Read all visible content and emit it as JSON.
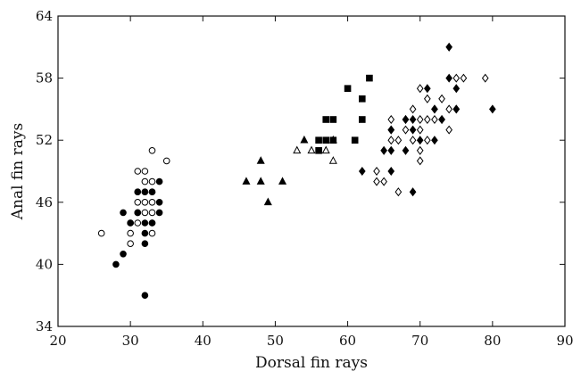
{
  "chart_data": {
    "type": "scatter",
    "xlabel": "Dorsal fin rays",
    "ylabel": "Anal fin rays",
    "xlim": [
      20,
      90
    ],
    "ylim": [
      34,
      64
    ],
    "xticks": [
      20,
      30,
      40,
      50,
      60,
      70,
      80,
      90
    ],
    "yticks": [
      34,
      40,
      46,
      52,
      58,
      64
    ],
    "xtick_labels": [
      "20",
      "30",
      "40",
      "50",
      "60",
      "70",
      "80",
      "90"
    ],
    "ytick_labels": [
      "34",
      "40",
      "46",
      "52",
      "58",
      "64"
    ],
    "grid": false,
    "legend": "none",
    "series": [
      {
        "marker": "open-circle",
        "points": [
          [
            26,
            43
          ],
          [
            30,
            42
          ],
          [
            30,
            43
          ],
          [
            30,
            44
          ],
          [
            31,
            44
          ],
          [
            31,
            45
          ],
          [
            31,
            46
          ],
          [
            31,
            47
          ],
          [
            31,
            49
          ],
          [
            32,
            45
          ],
          [
            32,
            46
          ],
          [
            32,
            47
          ],
          [
            32,
            48
          ],
          [
            32,
            49
          ],
          [
            33,
            43
          ],
          [
            33,
            44
          ],
          [
            33,
            45
          ],
          [
            33,
            46
          ],
          [
            33,
            47
          ],
          [
            33,
            48
          ],
          [
            33,
            51
          ],
          [
            35,
            50
          ]
        ]
      },
      {
        "marker": "filled-circle",
        "points": [
          [
            28,
            40
          ],
          [
            29,
            41
          ],
          [
            29,
            45
          ],
          [
            30,
            44
          ],
          [
            31,
            45
          ],
          [
            31,
            47
          ],
          [
            32,
            37
          ],
          [
            32,
            42
          ],
          [
            32,
            43
          ],
          [
            32,
            44
          ],
          [
            32,
            47
          ],
          [
            33,
            44
          ],
          [
            33,
            47
          ],
          [
            34,
            45
          ],
          [
            34,
            46
          ],
          [
            34,
            48
          ]
        ]
      },
      {
        "marker": "filled-triangle",
        "points": [
          [
            46,
            48
          ],
          [
            48,
            48
          ],
          [
            48,
            50
          ],
          [
            49,
            46
          ],
          [
            51,
            48
          ],
          [
            54,
            52
          ]
        ]
      },
      {
        "marker": "open-triangle",
        "points": [
          [
            53,
            51
          ],
          [
            55,
            51
          ],
          [
            57,
            51
          ],
          [
            58,
            50
          ],
          [
            58,
            52
          ]
        ]
      },
      {
        "marker": "filled-square",
        "points": [
          [
            56,
            51
          ],
          [
            56,
            52
          ],
          [
            57,
            52
          ],
          [
            57,
            54
          ],
          [
            58,
            52
          ],
          [
            58,
            54
          ],
          [
            60,
            57
          ],
          [
            61,
            52
          ],
          [
            62,
            54
          ],
          [
            62,
            56
          ],
          [
            63,
            58
          ]
        ]
      },
      {
        "marker": "open-diamond",
        "points": [
          [
            64,
            49
          ],
          [
            64,
            48
          ],
          [
            65,
            48
          ],
          [
            66,
            52
          ],
          [
            66,
            53
          ],
          [
            66,
            54
          ],
          [
            67,
            47
          ],
          [
            67,
            52
          ],
          [
            68,
            53
          ],
          [
            68,
            54
          ],
          [
            69,
            52
          ],
          [
            69,
            55
          ],
          [
            70,
            50
          ],
          [
            70,
            51
          ],
          [
            70,
            53
          ],
          [
            70,
            54
          ],
          [
            70,
            57
          ],
          [
            71,
            52
          ],
          [
            71,
            54
          ],
          [
            71,
            56
          ],
          [
            72,
            54
          ],
          [
            72,
            55
          ],
          [
            73,
            54
          ],
          [
            73,
            56
          ],
          [
            74,
            53
          ],
          [
            74,
            55
          ],
          [
            75,
            55
          ],
          [
            75,
            58
          ],
          [
            76,
            58
          ],
          [
            79,
            58
          ]
        ]
      },
      {
        "marker": "filled-diamond",
        "points": [
          [
            62,
            49
          ],
          [
            65,
            51
          ],
          [
            66,
            49
          ],
          [
            66,
            51
          ],
          [
            66,
            53
          ],
          [
            68,
            51
          ],
          [
            68,
            54
          ],
          [
            69,
            47
          ],
          [
            69,
            53
          ],
          [
            69,
            54
          ],
          [
            70,
            52
          ],
          [
            71,
            57
          ],
          [
            72,
            52
          ],
          [
            72,
            55
          ],
          [
            73,
            54
          ],
          [
            74,
            58
          ],
          [
            74,
            61
          ],
          [
            75,
            55
          ],
          [
            75,
            57
          ],
          [
            80,
            55
          ]
        ]
      }
    ]
  }
}
